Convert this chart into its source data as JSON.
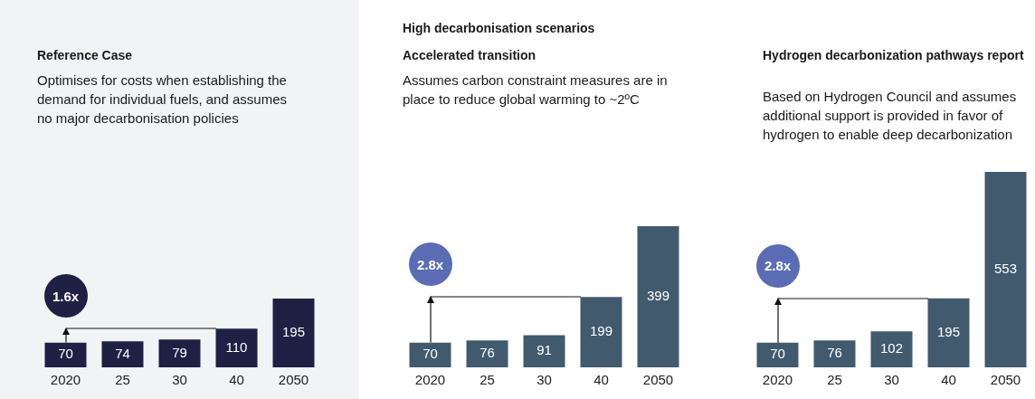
{
  "chart_data": [
    {
      "type": "bar",
      "title": "Reference Case",
      "subtitle": "Optimises for costs when establishing the demand for individual fuels, and assumes no major decarbonisation policies",
      "categories": [
        "2020",
        "25",
        "30",
        "40",
        "2050"
      ],
      "values": [
        70,
        74,
        79,
        110,
        195
      ],
      "color": "#1e2044",
      "data_labels": true,
      "annotations": [
        "1.6x"
      ]
    },
    {
      "type": "bar",
      "title": "Accelerated transition",
      "subtitle": "Assumes carbon constraint measures are in place to reduce global warming to ~2ºC",
      "categories": [
        "2020",
        "25",
        "30",
        "40",
        "2050"
      ],
      "values": [
        70,
        76,
        91,
        199,
        399
      ],
      "color": "#415a6d",
      "data_labels": true,
      "annotations": [
        "High decarbonisation scenarios",
        "2.8x"
      ]
    },
    {
      "type": "bar",
      "title": "Hydrogen decarbonization pathways report",
      "subtitle": "Based on Hydrogen Council and assumes additional support is provided in favor of hydrogen to enable deep decarbonization",
      "categories": [
        "2020",
        "25",
        "30",
        "40",
        "2050"
      ],
      "values": [
        70,
        76,
        102,
        195,
        553
      ],
      "color": "#415a6d",
      "data_labels": true,
      "annotations": [
        "2.8x"
      ]
    }
  ]
}
